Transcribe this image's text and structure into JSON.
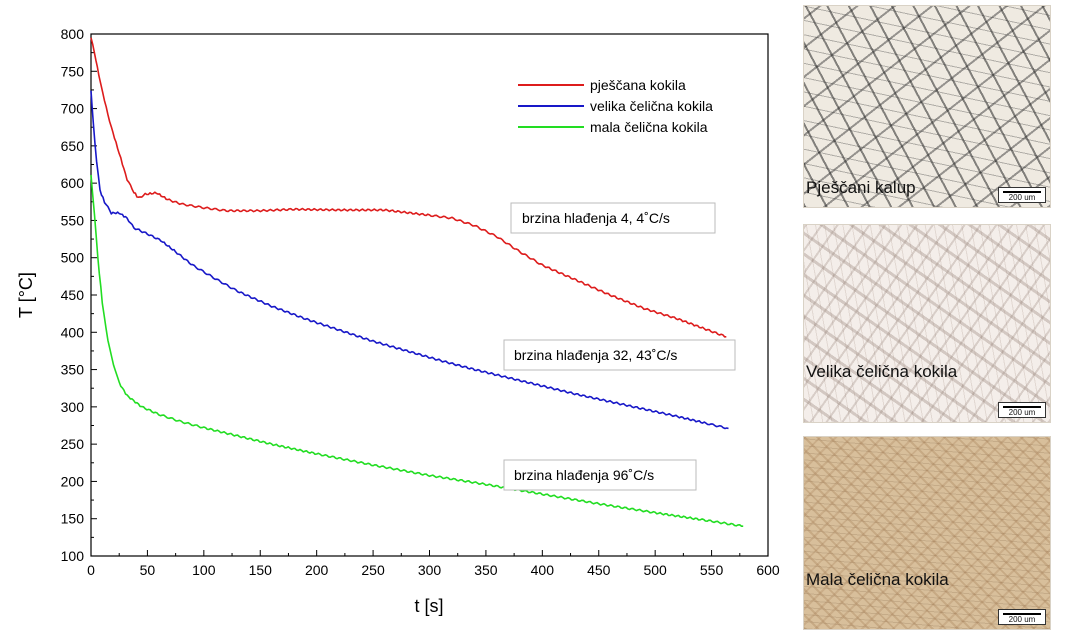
{
  "chart_data": {
    "type": "line",
    "xlabel": "t [s]",
    "ylabel": "T [°C]",
    "xlim": [
      0,
      600
    ],
    "ylim": [
      100,
      800
    ],
    "xticks": [
      0,
      50,
      100,
      150,
      200,
      250,
      300,
      350,
      400,
      450,
      500,
      550,
      600
    ],
    "yticks": [
      100,
      150,
      200,
      250,
      300,
      350,
      400,
      450,
      500,
      550,
      600,
      650,
      700,
      750,
      800
    ],
    "grid": false,
    "legend_position": "top-right",
    "series": [
      {
        "name": "pješčana kokila",
        "color": "#dd1c1c",
        "points": [
          [
            0,
            795
          ],
          [
            3,
            775
          ],
          [
            7,
            745
          ],
          [
            12,
            710
          ],
          [
            18,
            675
          ],
          [
            25,
            640
          ],
          [
            32,
            605
          ],
          [
            38,
            588
          ],
          [
            42,
            580
          ],
          [
            48,
            585
          ],
          [
            58,
            587
          ],
          [
            68,
            578
          ],
          [
            80,
            572
          ],
          [
            100,
            567
          ],
          [
            120,
            563
          ],
          [
            150,
            563
          ],
          [
            180,
            565
          ],
          [
            220,
            564
          ],
          [
            260,
            564
          ],
          [
            300,
            557
          ],
          [
            320,
            553
          ],
          [
            340,
            543
          ],
          [
            360,
            528
          ],
          [
            380,
            508
          ],
          [
            400,
            490
          ],
          [
            430,
            470
          ],
          [
            460,
            450
          ],
          [
            490,
            432
          ],
          [
            520,
            418
          ],
          [
            545,
            404
          ],
          [
            563,
            394
          ]
        ]
      },
      {
        "name": "velika čelična kokila",
        "color": "#1818c8",
        "points": [
          [
            0,
            725
          ],
          [
            2,
            680
          ],
          [
            5,
            630
          ],
          [
            8,
            590
          ],
          [
            12,
            575
          ],
          [
            18,
            560
          ],
          [
            25,
            560
          ],
          [
            32,
            553
          ],
          [
            38,
            540
          ],
          [
            50,
            532
          ],
          [
            62,
            523
          ],
          [
            75,
            508
          ],
          [
            90,
            490
          ],
          [
            110,
            472
          ],
          [
            130,
            455
          ],
          [
            160,
            435
          ],
          [
            190,
            418
          ],
          [
            220,
            403
          ],
          [
            250,
            388
          ],
          [
            280,
            375
          ],
          [
            310,
            362
          ],
          [
            340,
            350
          ],
          [
            370,
            339
          ],
          [
            400,
            328
          ],
          [
            430,
            317
          ],
          [
            460,
            307
          ],
          [
            490,
            297
          ],
          [
            520,
            287
          ],
          [
            545,
            278
          ],
          [
            565,
            271
          ]
        ]
      },
      {
        "name": "mala čelična kokila",
        "color": "#22dd22",
        "points": [
          [
            0,
            610
          ],
          [
            3,
            560
          ],
          [
            6,
            500
          ],
          [
            10,
            440
          ],
          [
            15,
            390
          ],
          [
            20,
            355
          ],
          [
            25,
            332
          ],
          [
            32,
            315
          ],
          [
            45,
            300
          ],
          [
            60,
            290
          ],
          [
            80,
            280
          ],
          [
            100,
            272
          ],
          [
            130,
            261
          ],
          [
            160,
            250
          ],
          [
            200,
            237
          ],
          [
            250,
            222
          ],
          [
            300,
            208
          ],
          [
            350,
            196
          ],
          [
            400,
            183
          ],
          [
            450,
            170
          ],
          [
            500,
            158
          ],
          [
            540,
            149
          ],
          [
            578,
            140
          ]
        ]
      }
    ],
    "annotations": [
      "brzina hlađenja 4, 4˚C/s",
      "brzina hlađenja 32, 43˚C/s",
      "brzina hlađenja 96˚C/s"
    ]
  },
  "micrographs": [
    {
      "caption": "Pješčani kalup",
      "scale": "200 um"
    },
    {
      "caption": "Velika čelična kokila",
      "scale": "200 um"
    },
    {
      "caption": "Mala čelična kokila",
      "scale": "200 um"
    }
  ]
}
